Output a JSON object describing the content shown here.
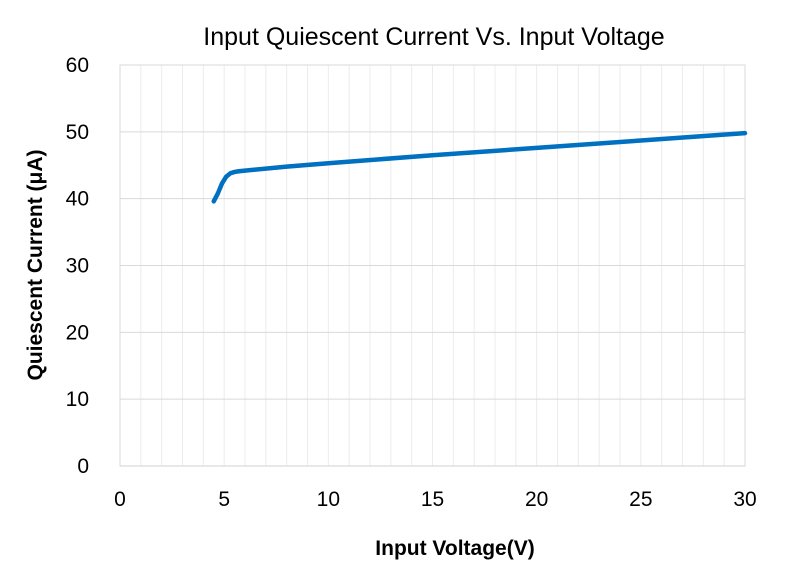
{
  "chart_data": {
    "type": "line",
    "title": "Input Quiescent Current Vs. Input Voltage",
    "xlabel": "Input Voltage(V)",
    "ylabel": "Quiescent Current (μA)",
    "xlim": [
      0,
      30
    ],
    "ylim": [
      0,
      60
    ],
    "x_ticks": [
      "0",
      "5",
      "10",
      "15",
      "20",
      "25",
      "30"
    ],
    "y_ticks": [
      "0",
      "10",
      "20",
      "30",
      "40",
      "50",
      "60"
    ],
    "x_minor_step": 1,
    "y_major_step": 10,
    "grid": true,
    "legend": "none",
    "series": [
      {
        "name": "Quiescent Current",
        "color": "#0070c0",
        "x": [
          4.5,
          4.7,
          4.9,
          5.1,
          5.3,
          5.5,
          5.7,
          6.0,
          8,
          10,
          15,
          20,
          25,
          30
        ],
        "y": [
          39.6,
          40.8,
          42.3,
          43.3,
          43.8,
          44.0,
          44.1,
          44.2,
          44.8,
          45.3,
          46.5,
          47.6,
          48.7,
          49.8
        ]
      }
    ]
  }
}
